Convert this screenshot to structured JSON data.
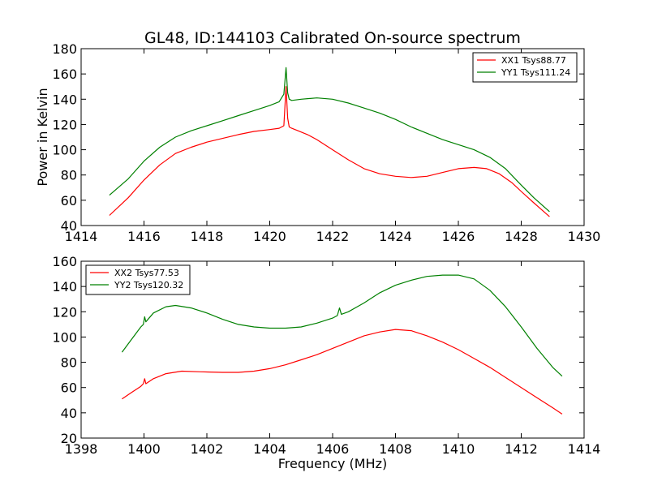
{
  "figure_title": "GL48, ID:144103 Calibrated On-source spectrum",
  "chart_data": [
    {
      "type": "line",
      "xlim": [
        1414,
        1430
      ],
      "ylim": [
        40,
        180
      ],
      "xticks": [
        "1414",
        "1416",
        "1418",
        "1420",
        "1422",
        "1424",
        "1426",
        "1428",
        "1430"
      ],
      "yticks": [
        "40",
        "60",
        "80",
        "100",
        "120",
        "140",
        "160",
        "180"
      ],
      "xlabel": "",
      "ylabel": "Power in Kelvin",
      "legend_position": "top-right",
      "series": [
        {
          "name": "XX1 Tsys88.77",
          "color": "#ff0000",
          "x": [
            1414.9,
            1415.5,
            1416.0,
            1416.5,
            1417.0,
            1417.5,
            1418.0,
            1418.5,
            1419.0,
            1419.5,
            1420.0,
            1420.3,
            1420.45,
            1420.52,
            1420.57,
            1420.62,
            1420.7,
            1420.9,
            1421.2,
            1421.5,
            1422.0,
            1422.5,
            1423.0,
            1423.5,
            1424.0,
            1424.5,
            1425.0,
            1425.5,
            1426.0,
            1426.5,
            1426.9,
            1427.3,
            1427.7,
            1428.0,
            1428.4,
            1428.9
          ],
          "values": [
            48,
            62,
            76,
            88,
            97,
            102,
            106,
            109,
            112,
            114.5,
            116,
            117,
            119,
            150,
            125,
            118,
            117,
            115,
            112,
            108,
            100,
            92,
            85,
            81,
            79,
            78,
            79,
            82,
            85,
            86,
            85,
            81,
            74,
            67,
            58,
            47
          ]
        },
        {
          "name": "YY1 Tsys111.24",
          "color": "#008000",
          "x": [
            1414.9,
            1415.5,
            1416.0,
            1416.5,
            1417.0,
            1417.5,
            1418.0,
            1418.5,
            1419.0,
            1419.5,
            1420.0,
            1420.3,
            1420.45,
            1420.52,
            1420.57,
            1420.62,
            1420.7,
            1421.0,
            1421.5,
            1422.0,
            1422.5,
            1423.0,
            1423.5,
            1424.0,
            1424.5,
            1425.0,
            1425.5,
            1426.0,
            1426.5,
            1427.0,
            1427.5,
            1428.0,
            1428.4,
            1428.9
          ],
          "values": [
            64,
            77,
            91,
            102,
            110,
            115,
            119,
            123,
            127,
            131,
            135,
            138,
            144,
            165,
            145,
            140,
            139,
            140,
            141,
            140,
            137,
            133,
            129,
            124,
            118,
            113,
            108,
            104,
            100,
            94,
            85,
            72,
            62,
            51
          ]
        }
      ]
    },
    {
      "type": "line",
      "xlim": [
        1398,
        1414
      ],
      "ylim": [
        20,
        160
      ],
      "xticks": [
        "1398",
        "1400",
        "1402",
        "1404",
        "1406",
        "1408",
        "1410",
        "1412",
        "1414"
      ],
      "yticks": [
        "20",
        "40",
        "60",
        "80",
        "100",
        "120",
        "140",
        "160"
      ],
      "xlabel": "Frequency (MHz)",
      "ylabel": "",
      "legend_position": "top-left",
      "series": [
        {
          "name": "XX2 Tsys77.53",
          "color": "#ff0000",
          "x": [
            1399.3,
            1399.6,
            1399.9,
            1399.98,
            1400.02,
            1400.06,
            1400.3,
            1400.7,
            1401.2,
            1401.8,
            1402.5,
            1403.0,
            1403.5,
            1404.0,
            1404.5,
            1405.0,
            1405.5,
            1406.0,
            1406.5,
            1407.0,
            1407.5,
            1408.0,
            1408.5,
            1409.0,
            1409.5,
            1410.0,
            1410.5,
            1411.0,
            1411.5,
            1412.0,
            1412.5,
            1413.0,
            1413.3
          ],
          "values": [
            51,
            56,
            61,
            63,
            67,
            63,
            67,
            71,
            73,
            72.5,
            72,
            72,
            73,
            75,
            78,
            82,
            86,
            91,
            96,
            101,
            104,
            106,
            105,
            101,
            96,
            90,
            83,
            76,
            68,
            60,
            52,
            44,
            39
          ]
        },
        {
          "name": "YY2 Tsys120.32",
          "color": "#008000",
          "x": [
            1399.3,
            1399.6,
            1399.9,
            1399.98,
            1400.02,
            1400.06,
            1400.3,
            1400.7,
            1401.0,
            1401.5,
            1402.0,
            1402.5,
            1403.0,
            1403.5,
            1404.0,
            1404.5,
            1405.0,
            1405.5,
            1406.0,
            1406.15,
            1406.22,
            1406.28,
            1406.5,
            1407.0,
            1407.5,
            1408.0,
            1408.5,
            1409.0,
            1409.5,
            1410.0,
            1410.5,
            1411.0,
            1411.5,
            1412.0,
            1412.5,
            1413.0,
            1413.3
          ],
          "values": [
            88,
            98,
            108,
            110,
            116,
            112,
            119,
            124,
            125,
            123,
            119,
            114,
            110,
            108,
            107,
            107,
            108,
            111,
            115,
            117,
            123,
            118,
            120,
            127,
            135,
            141,
            145,
            148,
            149,
            149,
            146,
            137,
            124,
            108,
            91,
            76,
            69
          ]
        }
      ]
    }
  ]
}
